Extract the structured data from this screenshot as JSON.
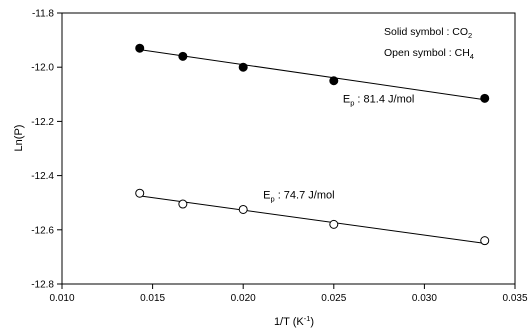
{
  "chart_data": {
    "type": "scatter",
    "xlabel": "1/T (K",
    "xlabel_sup": "-1",
    "xlabel_close": ")",
    "ylabel": "Ln(P)",
    "xlim": [
      0.01,
      0.035
    ],
    "ylim": [
      -12.8,
      -11.8
    ],
    "x_ticks": [
      0.01,
      0.015,
      0.02,
      0.025,
      0.03,
      0.035
    ],
    "x_tick_labels": [
      "0.010",
      "0.015",
      "0.020",
      "0.025",
      "0.030",
      "0.035"
    ],
    "y_ticks": [
      -12.8,
      -12.6,
      -12.4,
      -12.2,
      -12.0,
      -11.8
    ],
    "y_tick_labels": [
      "-12.8",
      "-12.6",
      "-12.4",
      "-12.2",
      "-12.0",
      "-11.8"
    ],
    "grid": false,
    "series": [
      {
        "marker": "filled-circle",
        "x": [
          0.01429,
          0.01667,
          0.02,
          0.025,
          0.03333
        ],
        "y": [
          -11.93,
          -11.96,
          -12.0,
          -12.05,
          -12.115
        ],
        "fit": {
          "x": [
            0.01429,
            0.03333
          ],
          "y": [
            -11.935,
            -12.12
          ]
        }
      },
      {
        "marker": "open-circle",
        "x": [
          0.01429,
          0.01667,
          0.02,
          0.025,
          0.03333
        ],
        "y": [
          -12.465,
          -12.505,
          -12.525,
          -12.58,
          -12.64
        ],
        "fit": {
          "x": [
            0.01429,
            0.03333
          ],
          "y": [
            -12.475,
            -12.65
          ]
        }
      }
    ],
    "annotations": [
      {
        "prefix": "E",
        "sub": "p",
        "text": " : 81.4 J/mol",
        "x": 0.0255,
        "y": -12.13
      },
      {
        "prefix": "E",
        "sub": "p",
        "text": " : 74.7 J/mol",
        "x": 0.0211,
        "y": -12.485
      }
    ],
    "legend": {
      "placement": "top-right",
      "line1": "Solid symbol : CO",
      "line1_sub": "2",
      "line2": "Open symbol : CH",
      "line2_sub": "4"
    }
  }
}
